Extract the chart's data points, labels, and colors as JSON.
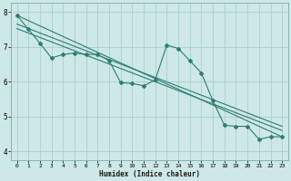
{
  "xlabel": "Humidex (Indice chaleur)",
  "background_color": "#cde8e6",
  "grid_color": "#aacfcc",
  "line_color": "#2e7d72",
  "xlim": [
    -0.5,
    23.5
  ],
  "ylim": [
    3.75,
    8.25
  ],
  "yticks": [
    4,
    5,
    6,
    7,
    8
  ],
  "xticks": [
    0,
    1,
    2,
    3,
    4,
    5,
    6,
    7,
    8,
    9,
    10,
    11,
    12,
    13,
    14,
    15,
    16,
    17,
    18,
    19,
    20,
    21,
    22,
    23
  ],
  "main_x": [
    0,
    1,
    2,
    3,
    4,
    5,
    6,
    7,
    8,
    9,
    10,
    11,
    12,
    13,
    14,
    15,
    16,
    17,
    18,
    19,
    20,
    21,
    22,
    23
  ],
  "main_y": [
    7.9,
    7.5,
    7.1,
    6.68,
    6.78,
    6.82,
    6.78,
    6.78,
    6.6,
    5.97,
    5.95,
    5.88,
    6.05,
    7.05,
    6.95,
    6.6,
    6.25,
    5.45,
    4.75,
    4.72,
    4.72,
    4.35,
    4.42,
    4.42
  ],
  "trend_lines": [
    {
      "x0": 0,
      "y0": 7.9,
      "x1": 23,
      "y1": 4.42
    },
    {
      "x0": 0,
      "y0": 7.65,
      "x1": 23,
      "y1": 4.72
    },
    {
      "x0": 0,
      "y0": 7.52,
      "x1": 23,
      "y1": 4.6
    }
  ]
}
